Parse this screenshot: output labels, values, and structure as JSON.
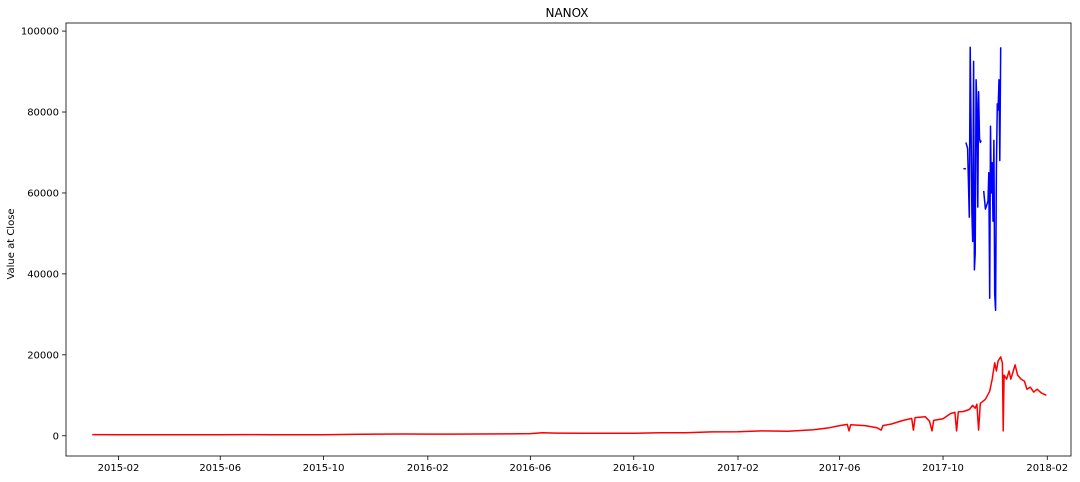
{
  "chart_data": {
    "type": "line",
    "title": "NANOX",
    "xlabel": "",
    "ylabel": "Value at Close",
    "xlim": [
      "2014-12-01",
      "2018-03-01"
    ],
    "ylim": [
      -5000,
      102000
    ],
    "grid": false,
    "x_ticks": [
      "2015-02",
      "2015-06",
      "2015-10",
      "2016-02",
      "2016-06",
      "2016-10",
      "2017-02",
      "2017-06",
      "2017-10",
      "2018-02"
    ],
    "y_ticks": [
      0,
      20000,
      40000,
      60000,
      80000,
      100000
    ],
    "y_tick_labels": [
      "0",
      "20000",
      "40000",
      "60000",
      "80000",
      "100000"
    ],
    "series": [
      {
        "color": "#0000ff",
        "points": [
          [
            "2017-10-25",
            66000
          ],
          [
            "2017-10-28",
            66000
          ],
          [
            "2017-11-20",
            56000
          ]
        ],
        "segments": [
          [
            [
              "2017-10-25",
              66000
            ],
            [
              "2017-10-28",
              66000
            ]
          ],
          [
            [
              "2017-10-28",
              72500
            ],
            [
              "2017-10-30",
              71000
            ],
            [
              "2017-11-01",
              54000
            ],
            [
              "2017-11-02",
              96000
            ],
            [
              "2017-11-03",
              78000
            ],
            [
              "2017-11-04",
              55000
            ],
            [
              "2017-11-05",
              48000
            ],
            [
              "2017-11-06",
              92500
            ],
            [
              "2017-11-07",
              41000
            ],
            [
              "2017-11-08",
              45000
            ],
            [
              "2017-11-09",
              88000
            ],
            [
              "2017-11-10",
              82000
            ],
            [
              "2017-11-11",
              56500
            ],
            [
              "2017-11-12",
              85000
            ],
            [
              "2017-11-13",
              73500
            ],
            [
              "2017-11-14",
              72500
            ],
            [
              "2017-11-15",
              73000
            ]
          ],
          [
            [
              "2017-11-18",
              60500
            ],
            [
              "2017-11-20",
              56000
            ],
            [
              "2017-11-23",
              58000
            ],
            [
              "2017-11-24",
              65000
            ],
            [
              "2017-11-25",
              34000
            ],
            [
              "2017-11-26",
              76500
            ],
            [
              "2017-11-27",
              60000
            ],
            [
              "2017-11-28",
              67500
            ],
            [
              "2017-11-29",
              53000
            ],
            [
              "2017-11-30",
              73000
            ],
            [
              "2017-12-01",
              35000
            ],
            [
              "2017-12-02",
              31000
            ],
            [
              "2017-12-03",
              66000
            ],
            [
              "2017-12-04",
              82000
            ],
            [
              "2017-12-05",
              80500
            ],
            [
              "2017-12-06",
              88000
            ],
            [
              "2017-12-07",
              68000
            ],
            [
              "2017-12-08",
              96000
            ]
          ]
        ]
      },
      {
        "color": "#ff0000",
        "points": [
          [
            "2015-01-01",
            300
          ],
          [
            "2015-02-01",
            230
          ],
          [
            "2015-03-01",
            270
          ],
          [
            "2015-04-01",
            230
          ],
          [
            "2015-05-01",
            235
          ],
          [
            "2015-06-01",
            235
          ],
          [
            "2015-07-01",
            280
          ],
          [
            "2015-08-01",
            275
          ],
          [
            "2015-09-01",
            235
          ],
          [
            "2015-10-01",
            245
          ],
          [
            "2015-11-01",
            330
          ],
          [
            "2015-12-01",
            410
          ],
          [
            "2016-01-01",
            430
          ],
          [
            "2016-02-01",
            400
          ],
          [
            "2016-03-01",
            415
          ],
          [
            "2016-04-01",
            430
          ],
          [
            "2016-05-01",
            450
          ],
          [
            "2016-06-01",
            530
          ],
          [
            "2016-06-15",
            750
          ],
          [
            "2016-07-01",
            670
          ],
          [
            "2016-08-01",
            600
          ],
          [
            "2016-09-01",
            610
          ],
          [
            "2016-10-01",
            615
          ],
          [
            "2016-11-01",
            730
          ],
          [
            "2016-12-01",
            770
          ],
          [
            "2017-01-01",
            960
          ],
          [
            "2017-02-01",
            1000
          ],
          [
            "2017-03-01",
            1200
          ],
          [
            "2017-04-01",
            1100
          ],
          [
            "2017-05-01",
            1500
          ],
          [
            "2017-05-20",
            2000
          ],
          [
            "2017-06-01",
            2500
          ],
          [
            "2017-06-10",
            2800
          ],
          [
            "2017-06-12",
            1200
          ],
          [
            "2017-06-14",
            2700
          ],
          [
            "2017-07-01",
            2500
          ],
          [
            "2017-07-15",
            2000
          ],
          [
            "2017-07-20",
            1400
          ],
          [
            "2017-07-22",
            2500
          ],
          [
            "2017-08-01",
            2900
          ],
          [
            "2017-08-15",
            3800
          ],
          [
            "2017-08-25",
            4300
          ],
          [
            "2017-08-27",
            1400
          ],
          [
            "2017-08-29",
            4500
          ],
          [
            "2017-09-10",
            4700
          ],
          [
            "2017-09-15",
            3600
          ],
          [
            "2017-09-18",
            1200
          ],
          [
            "2017-09-20",
            3800
          ],
          [
            "2017-10-01",
            4200
          ],
          [
            "2017-10-10",
            5500
          ],
          [
            "2017-10-15",
            5800
          ],
          [
            "2017-10-17",
            1200
          ],
          [
            "2017-10-19",
            5900
          ],
          [
            "2017-10-25",
            6000
          ],
          [
            "2017-11-01",
            6500
          ],
          [
            "2017-11-05",
            7500
          ],
          [
            "2017-11-08",
            6800
          ],
          [
            "2017-11-10",
            7800
          ],
          [
            "2017-11-12",
            1400
          ],
          [
            "2017-11-14",
            8000
          ],
          [
            "2017-11-20",
            9000
          ],
          [
            "2017-11-25",
            11000
          ],
          [
            "2017-11-28",
            14000
          ],
          [
            "2017-12-01",
            18000
          ],
          [
            "2017-12-03",
            16000
          ],
          [
            "2017-12-05",
            18500
          ],
          [
            "2017-12-08",
            19500
          ],
          [
            "2017-12-10",
            18000
          ],
          [
            "2017-12-11",
            1200
          ],
          [
            "2017-12-12",
            15000
          ],
          [
            "2017-12-15",
            14000
          ],
          [
            "2017-12-18",
            16000
          ],
          [
            "2017-12-20",
            14000
          ],
          [
            "2017-12-25",
            17500
          ],
          [
            "2017-12-28",
            15000
          ],
          [
            "2018-01-01",
            14000
          ],
          [
            "2018-01-05",
            13500
          ],
          [
            "2018-01-08",
            11500
          ],
          [
            "2018-01-12",
            12000
          ],
          [
            "2018-01-16",
            10800
          ],
          [
            "2018-01-20",
            11500
          ],
          [
            "2018-01-25",
            10600
          ],
          [
            "2018-01-31",
            10000
          ]
        ]
      }
    ]
  }
}
